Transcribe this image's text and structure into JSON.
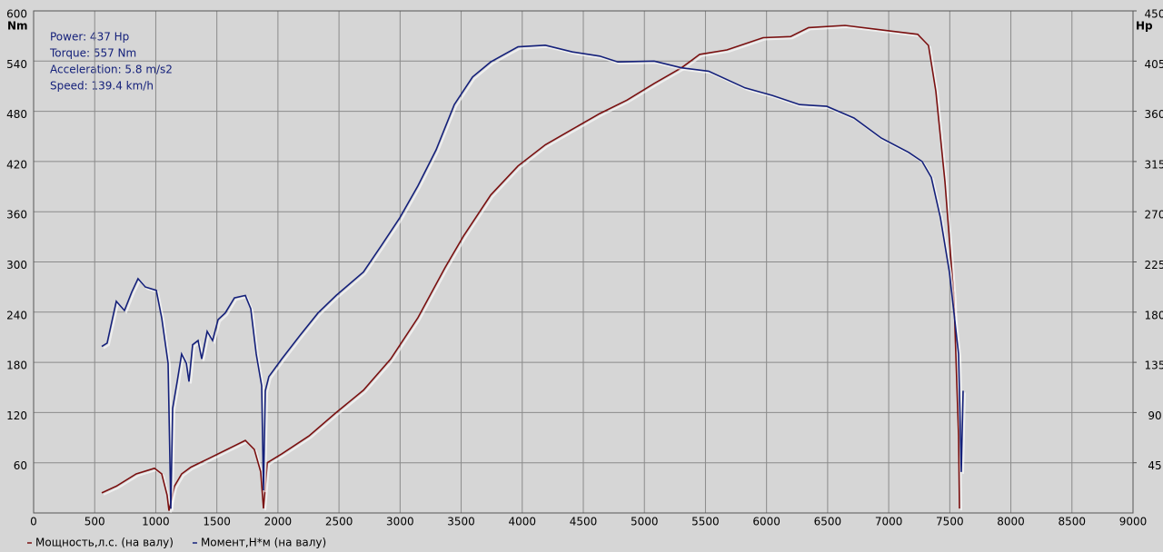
{
  "chart_data": {
    "type": "line",
    "annotations": [
      "Power: 437 Hp",
      "Torque: 557 Nm",
      "Acceleration: 5.8 m/s2",
      "Speed: 139.4 km/h"
    ],
    "y_unit": "Nm",
    "y2_unit": "Hp",
    "xlim": [
      0,
      9000
    ],
    "xticks": [
      0,
      500,
      1000,
      1500,
      2000,
      2500,
      3000,
      3500,
      4000,
      4500,
      5000,
      5500,
      6000,
      6500,
      7000,
      7500,
      8000,
      8500,
      9000
    ],
    "ylim": [
      0,
      600
    ],
    "yticks": [
      60,
      120,
      180,
      240,
      300,
      360,
      420,
      480,
      540,
      600
    ],
    "y2lim": [
      0,
      450
    ],
    "y2ticks": [
      45,
      90,
      135,
      180,
      225,
      270,
      315,
      360,
      405,
      450
    ],
    "grid": true,
    "series": [
      {
        "name": "Мощность,л.с. (на валу)",
        "color": "#7a1010",
        "axis": "y2",
        "x": [
          558,
          677,
          840,
          989,
          1049,
          1093,
          1108,
          1153,
          1212,
          1287,
          1436,
          1584,
          1733,
          1807,
          1859,
          1882,
          1912,
          2031,
          2254,
          2477,
          2700,
          2923,
          3146,
          3369,
          3518,
          3742,
          3965,
          4188,
          4411,
          4634,
          4857,
          5080,
          5303,
          5452,
          5675,
          5972,
          6196,
          6344,
          6642,
          6940,
          7237,
          7326,
          7386,
          7460,
          7535,
          7572,
          7579
        ],
        "values": [
          18,
          24,
          35,
          40,
          35,
          16,
          2,
          24,
          35,
          41,
          49,
          57,
          65,
          57,
          37,
          4,
          45,
          53,
          69,
          90,
          110,
          138,
          175,
          220,
          248,
          285,
          311,
          330,
          344,
          358,
          370,
          385,
          399,
          411,
          415,
          426,
          427,
          435,
          437,
          433,
          429,
          419,
          378,
          297,
          191,
          69,
          4
        ]
      },
      {
        "name": "Момент,Н*м (на валу)",
        "color": "#14207a",
        "x": [
          558,
          602,
          677,
          744,
          803,
          855,
          915,
          1004,
          1049,
          1101,
          1123,
          1138,
          1175,
          1212,
          1250,
          1272,
          1302,
          1346,
          1376,
          1421,
          1465,
          1510,
          1569,
          1644,
          1733,
          1778,
          1822,
          1867,
          1882,
          1897,
          1926,
          2031,
          2179,
          2328,
          2477,
          2700,
          2849,
          2998,
          3146,
          3295,
          3444,
          3593,
          3742,
          3965,
          4188,
          4411,
          4634,
          4783,
          5080,
          5303,
          5526,
          5824,
          6047,
          6270,
          6493,
          6716,
          6940,
          7163,
          7274,
          7349,
          7423,
          7497,
          7572,
          7594,
          7609
        ],
        "values": [
          199,
          203,
          253,
          242,
          264,
          280,
          270,
          266,
          233,
          179,
          5,
          125,
          157,
          190,
          179,
          157,
          201,
          206,
          184,
          217,
          206,
          231,
          239,
          257,
          260,
          244,
          190,
          152,
          27,
          146,
          163,
          184,
          212,
          239,
          260,
          288,
          320,
          353,
          391,
          434,
          488,
          521,
          539,
          557,
          559,
          551,
          546,
          539,
          540,
          532,
          528,
          508,
          499,
          488,
          486,
          472,
          448,
          431,
          420,
          401,
          353,
          288,
          190,
          49,
          146
        ]
      }
    ]
  }
}
